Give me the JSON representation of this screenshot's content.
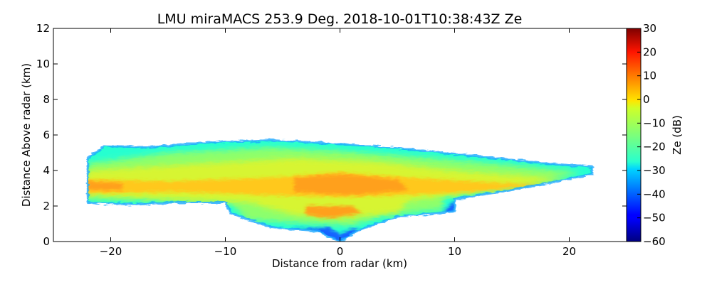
{
  "chart_data": {
    "type": "heatmap",
    "title": "LMU miraMACS 253.9 Deg. 2018-10-01T10:38:43Z  Ze",
    "xlabel": "Distance from radar (km)",
    "ylabel": "Distance Above radar  (km)",
    "xlim": [
      -25,
      25
    ],
    "ylim": [
      0,
      12
    ],
    "x_ticks": [
      -20,
      -10,
      0,
      10,
      20
    ],
    "x_tick_labels": [
      "−20",
      "−10",
      "0",
      "10",
      "20"
    ],
    "y_ticks": [
      0,
      2,
      4,
      6,
      8,
      10,
      12
    ],
    "y_tick_labels": [
      "0",
      "2",
      "4",
      "6",
      "8",
      "10",
      "12"
    ],
    "colorbar": {
      "label": "Ze (dB)",
      "range": [
        -60,
        30
      ],
      "ticks": [
        30,
        20,
        10,
        0,
        -10,
        -20,
        -30,
        -40,
        -50,
        -60
      ],
      "tick_labels": [
        "30",
        "20",
        "10",
        "0",
        "−10",
        "−20",
        "−30",
        "−40",
        "−50",
        "−60"
      ],
      "colormap": "jet"
    },
    "echo_region": {
      "description_units": "km",
      "outline": [
        [
          -22,
          2.2
        ],
        [
          -22,
          4.7
        ],
        [
          -20.5,
          5.4
        ],
        [
          -17,
          5.3
        ],
        [
          -11,
          5.6
        ],
        [
          -6,
          5.7
        ],
        [
          0,
          5.5
        ],
        [
          6,
          5.2
        ],
        [
          12,
          4.8
        ],
        [
          18,
          4.4
        ],
        [
          22,
          4.2
        ],
        [
          22,
          3.8
        ],
        [
          15,
          2.9
        ],
        [
          10,
          2.4
        ],
        [
          10,
          1.7
        ],
        [
          5,
          1.4
        ],
        [
          1.5,
          0.6
        ],
        [
          0,
          0
        ],
        [
          -2,
          0.6
        ],
        [
          -6,
          0.8
        ],
        [
          -9.5,
          1.6
        ],
        [
          -10,
          2.2
        ],
        [
          -14,
          2.2
        ],
        [
          -18,
          2.1
        ]
      ],
      "core_band_center_km": 3.1,
      "core_Ze_dB": 4,
      "mid_Ze_dB": -6,
      "edge_Ze_dB": -25
    }
  }
}
